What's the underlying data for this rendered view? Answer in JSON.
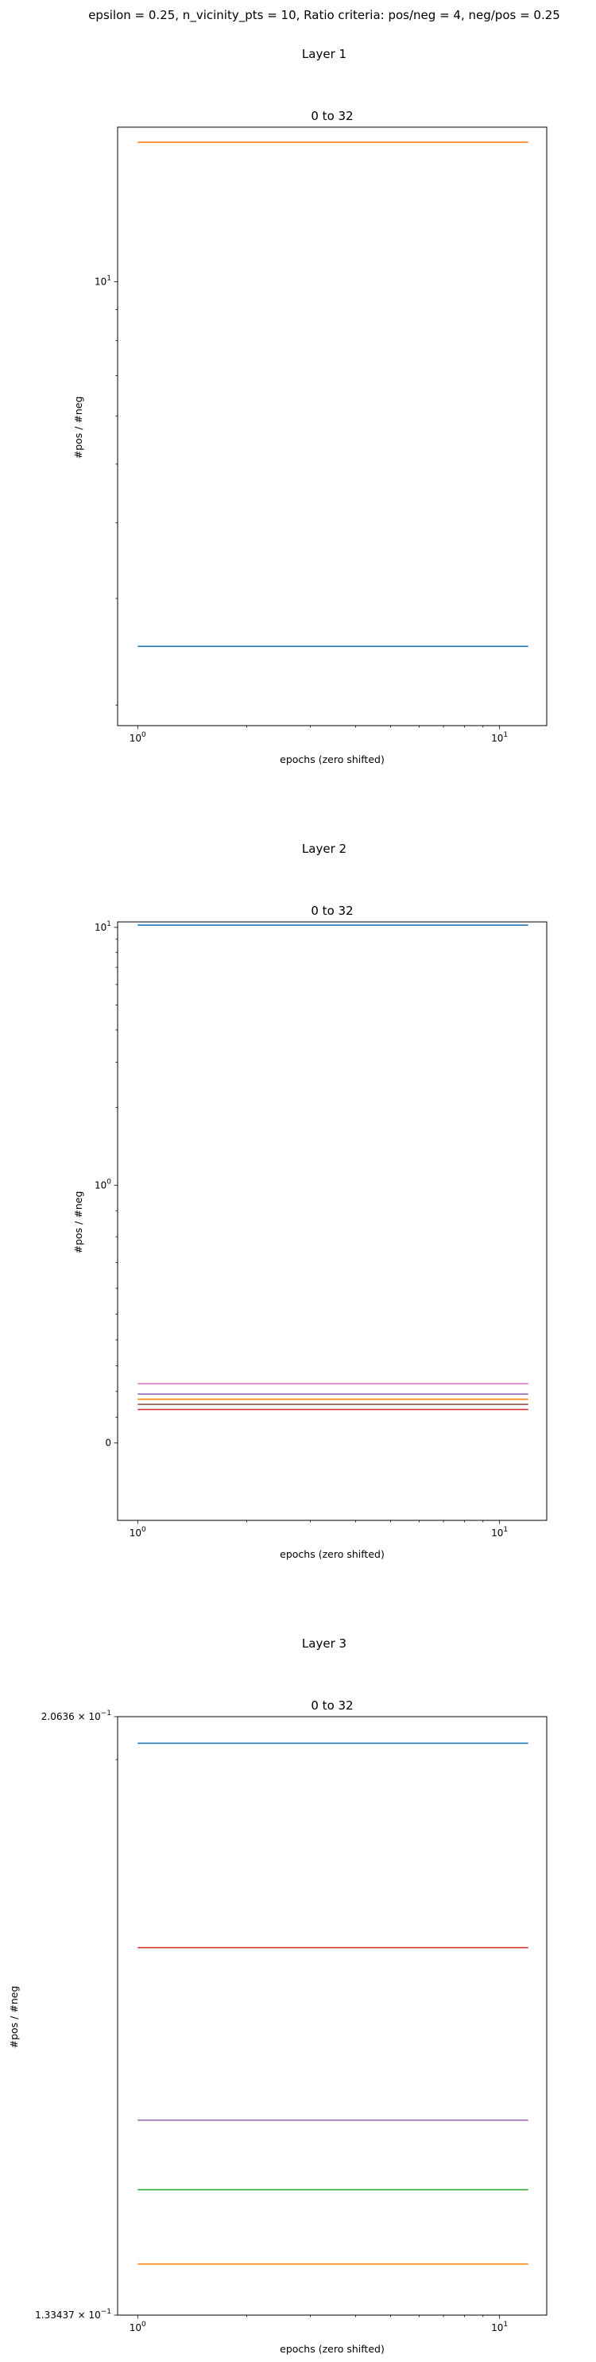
{
  "suptitle": "epsilon = 0.25, n_vicinity_pts = 10, Ratio criteria: pos/neg = 4, neg/pos = 0.25",
  "colors": {
    "blue": "#1f77b4",
    "orange": "#ff7f0e",
    "green": "#2ca02c",
    "red": "#d62728",
    "purple": "#9467bd",
    "brown": "#8c564b",
    "pink": "#e377c2",
    "axis": "#000000",
    "background": "#ffffff"
  },
  "chart_data": [
    {
      "type": "line",
      "section_title": "Layer 1",
      "title": "0 to 32",
      "xlabel": "epochs (zero shifted)",
      "ylabel": "#pos / #neg",
      "x_scale": "log",
      "y_scale": "log",
      "xlim": [
        0.88,
        13.5
      ],
      "ylim": [
        1.85,
        18.0
      ],
      "x_ticks": [
        {
          "value": 1,
          "label": "10^0"
        },
        {
          "value": 10,
          "label": "10^1"
        }
      ],
      "y_ticks": [
        {
          "value": 10,
          "label": "10^1"
        }
      ],
      "grid": false,
      "series": [
        {
          "color": "orange",
          "x": [
            1,
            2,
            3,
            4,
            5,
            6,
            7,
            8,
            9,
            10,
            11,
            12
          ],
          "y": [
            17.0,
            17.0,
            17.0,
            17.0,
            17.0,
            17.0,
            17.0,
            17.0,
            17.0,
            17.0,
            17.0,
            17.0
          ]
        },
        {
          "color": "blue",
          "x": [
            1,
            2,
            3,
            4,
            5,
            6,
            7,
            8,
            9,
            10,
            11,
            12
          ],
          "y": [
            2.5,
            2.5,
            2.5,
            2.5,
            2.5,
            2.5,
            2.5,
            2.5,
            2.5,
            2.5,
            2.5,
            2.5
          ]
        }
      ]
    },
    {
      "type": "line",
      "section_title": "Layer 2",
      "title": "0 to 32",
      "xlabel": "epochs (zero shifted)",
      "ylabel": "#pos / #neg",
      "x_scale": "log",
      "y_scale": "symlog",
      "xlim": [
        0.88,
        13.5
      ],
      "ylim": [
        -0.3,
        10.5
      ],
      "x_ticks": [
        {
          "value": 1,
          "label": "10^0"
        },
        {
          "value": 10,
          "label": "10^1"
        }
      ],
      "y_ticks": [
        {
          "value": 0,
          "label": "0"
        },
        {
          "value": 1,
          "label": "10^0"
        },
        {
          "value": 10,
          "label": "10^1"
        }
      ],
      "grid": false,
      "series": [
        {
          "color": "blue",
          "x": [
            1,
            2,
            3,
            4,
            5,
            6,
            7,
            8,
            9,
            10,
            11,
            12
          ],
          "y": [
            10.2,
            10.2,
            10.2,
            10.2,
            10.2,
            10.2,
            10.2,
            10.2,
            10.2,
            10.2,
            10.2,
            10.2
          ]
        },
        {
          "color": "pink",
          "x": [
            1,
            2,
            3,
            4,
            5,
            6,
            7,
            8,
            9,
            10,
            11,
            12
          ],
          "y": [
            0.23,
            0.23,
            0.23,
            0.23,
            0.23,
            0.23,
            0.23,
            0.23,
            0.23,
            0.23,
            0.23,
            0.23
          ]
        },
        {
          "color": "purple",
          "x": [
            1,
            2,
            3,
            4,
            5,
            6,
            7,
            8,
            9,
            10,
            11,
            12
          ],
          "y": [
            0.19,
            0.19,
            0.19,
            0.19,
            0.19,
            0.19,
            0.19,
            0.19,
            0.19,
            0.19,
            0.19,
            0.19
          ]
        },
        {
          "color": "orange",
          "x": [
            1,
            2,
            3,
            4,
            5,
            6,
            7,
            8,
            9,
            10,
            11,
            12
          ],
          "y": [
            0.17,
            0.17,
            0.17,
            0.17,
            0.17,
            0.17,
            0.17,
            0.17,
            0.17,
            0.17,
            0.17,
            0.17
          ]
        },
        {
          "color": "brown",
          "x": [
            1,
            2,
            3,
            4,
            5,
            6,
            7,
            8,
            9,
            10,
            11,
            12
          ],
          "y": [
            0.15,
            0.15,
            0.15,
            0.15,
            0.15,
            0.15,
            0.15,
            0.15,
            0.15,
            0.15,
            0.15,
            0.15
          ]
        },
        {
          "color": "red",
          "x": [
            1,
            2,
            3,
            4,
            5,
            6,
            7,
            8,
            9,
            10,
            11,
            12
          ],
          "y": [
            0.13,
            0.13,
            0.13,
            0.13,
            0.13,
            0.13,
            0.13,
            0.13,
            0.13,
            0.13,
            0.13,
            0.13
          ]
        }
      ]
    },
    {
      "type": "line",
      "section_title": "Layer 3",
      "title": "0 to 32",
      "xlabel": "epochs (zero shifted)",
      "ylabel": "#pos / #neg",
      "x_scale": "log",
      "y_scale": "log",
      "xlim": [
        0.88,
        13.5
      ],
      "ylim": [
        0.133437,
        0.20636
      ],
      "x_ticks": [
        {
          "value": 1,
          "label": "10^0"
        },
        {
          "value": 10,
          "label": "10^1"
        }
      ],
      "y_ticks": [
        {
          "value": 0.20636,
          "label": "2.0636 × 10^−1"
        },
        {
          "value": 0.133437,
          "label": "1.33437 × 10^−1"
        }
      ],
      "grid": false,
      "series": [
        {
          "color": "blue",
          "x": [
            1,
            2,
            3,
            4,
            5,
            6,
            7,
            8,
            9,
            10,
            11,
            12
          ],
          "y": [
            0.2024,
            0.2024,
            0.2024,
            0.2024,
            0.2024,
            0.2024,
            0.2024,
            0.2024,
            0.2024,
            0.2024,
            0.2024,
            0.2024
          ]
        },
        {
          "color": "red",
          "x": [
            1,
            2,
            3,
            4,
            5,
            6,
            7,
            8,
            9,
            10,
            11,
            12
          ],
          "y": [
            0.1744,
            0.1744,
            0.1744,
            0.1744,
            0.1744,
            0.1744,
            0.1744,
            0.1744,
            0.1744,
            0.1744,
            0.1744,
            0.1744
          ]
        },
        {
          "color": "purple",
          "x": [
            1,
            2,
            3,
            4,
            5,
            6,
            7,
            8,
            9,
            10,
            11,
            12
          ],
          "y": [
            0.1538,
            0.1538,
            0.1538,
            0.1538,
            0.1538,
            0.1538,
            0.1538,
            0.1538,
            0.1538,
            0.1538,
            0.1538,
            0.1538
          ]
        },
        {
          "color": "green",
          "x": [
            1,
            2,
            3,
            4,
            5,
            6,
            7,
            8,
            9,
            10,
            11,
            12
          ],
          "y": [
            0.1462,
            0.1462,
            0.1462,
            0.1462,
            0.1462,
            0.1462,
            0.1462,
            0.1462,
            0.1462,
            0.1462,
            0.1462,
            0.1462
          ]
        },
        {
          "color": "orange",
          "x": [
            1,
            2,
            3,
            4,
            5,
            6,
            7,
            8,
            9,
            10,
            11,
            12
          ],
          "y": [
            0.1385,
            0.1385,
            0.1385,
            0.1385,
            0.1385,
            0.1385,
            0.1385,
            0.1385,
            0.1385,
            0.1385,
            0.1385,
            0.1385
          ]
        }
      ]
    }
  ]
}
